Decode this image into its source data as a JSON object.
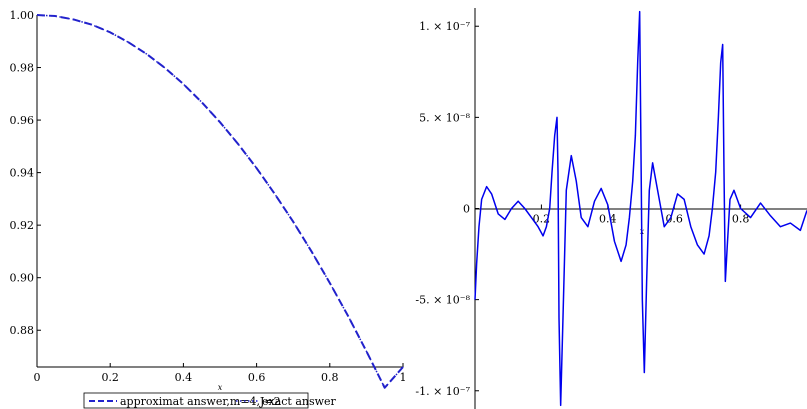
{
  "chart_data": [
    {
      "type": "line",
      "title": "",
      "xlabel": "x",
      "ylabel": "",
      "xlim": [
        0,
        1
      ],
      "ylim": [
        0.866,
        1.0
      ],
      "xticks": [
        "0",
        "0.2",
        "0.4",
        "0.6",
        "0.8",
        "1"
      ],
      "yticks": [
        "0.88",
        "0.90",
        "0.92",
        "0.94",
        "0.96",
        "0.98",
        "1.00"
      ],
      "grid": false,
      "legend_position": "bottom",
      "series": [
        {
          "name": "approximat answer,m=4,J=2",
          "style": "dashed",
          "color": "#2222cc",
          "x": [
            0,
            0.05,
            0.1,
            0.15,
            0.2,
            0.25,
            0.3,
            0.35,
            0.4,
            0.45,
            0.5,
            0.55,
            0.6,
            0.65,
            0.7,
            0.75,
            0.8,
            0.85,
            0.9,
            0.95,
            1.0
          ],
          "y": [
            1.0,
            0.9996,
            0.9983,
            0.9963,
            0.9934,
            0.9896,
            0.9851,
            0.9798,
            0.9737,
            0.9668,
            0.9592,
            0.9508,
            0.9417,
            0.9318,
            0.9213,
            0.91,
            0.898,
            0.8854,
            0.872,
            0.8581,
            0.866
          ]
        },
        {
          "name": "exact answer",
          "style": "dotted",
          "color": "#2222cc",
          "x": [
            0,
            0.05,
            0.1,
            0.15,
            0.2,
            0.25,
            0.3,
            0.35,
            0.4,
            0.45,
            0.5,
            0.55,
            0.6,
            0.65,
            0.7,
            0.75,
            0.8,
            0.85,
            0.9,
            0.95,
            1.0
          ],
          "y": [
            1.0,
            0.9996,
            0.9983,
            0.9963,
            0.9934,
            0.9896,
            0.9851,
            0.9798,
            0.9737,
            0.9668,
            0.9592,
            0.9508,
            0.9417,
            0.9318,
            0.9213,
            0.91,
            0.898,
            0.8854,
            0.872,
            0.8581,
            0.866
          ]
        }
      ]
    },
    {
      "type": "line",
      "title": "",
      "xlabel": "x",
      "ylabel": "",
      "xlim": [
        0,
        1
      ],
      "ylim": [
        -1.1e-07,
        1.1e-07
      ],
      "xticks": [
        "0.2",
        "0.4",
        "0.6",
        "0.8"
      ],
      "yticks": [
        "1. × 10⁻⁷",
        "5. × 10⁻⁸",
        "0",
        "-5. × 10⁻⁸",
        "-1. × 10⁻⁷"
      ],
      "grid": false,
      "series": [
        {
          "color": "#0000ee",
          "x": [
            0,
            0.005,
            0.012,
            0.02,
            0.035,
            0.05,
            0.07,
            0.09,
            0.11,
            0.13,
            0.15,
            0.17,
            0.19,
            0.205,
            0.215,
            0.225,
            0.232,
            0.24,
            0.247,
            0.25,
            0.253,
            0.258,
            0.265,
            0.275,
            0.29,
            0.305,
            0.32,
            0.34,
            0.36,
            0.38,
            0.4,
            0.42,
            0.44,
            0.455,
            0.465,
            0.475,
            0.483,
            0.49,
            0.496,
            0.5,
            0.504,
            0.51,
            0.517,
            0.525,
            0.535,
            0.55,
            0.57,
            0.59,
            0.61,
            0.63,
            0.65,
            0.67,
            0.69,
            0.705,
            0.715,
            0.725,
            0.733,
            0.74,
            0.746,
            0.75,
            0.754,
            0.76,
            0.768,
            0.78,
            0.8,
            0.83,
            0.86,
            0.89,
            0.92,
            0.95,
            0.98,
            1.0
          ],
          "y": [
            -5e-08,
            -3e-08,
            -1e-08,
            5e-09,
            1.2e-08,
            8e-09,
            -3e-09,
            -6e-09,
            0,
            4e-09,
            0,
            -5e-09,
            -1e-08,
            -1.5e-08,
            -1e-08,
            0,
            2e-08,
            4e-08,
            5e-08,
            2e-08,
            -6e-08,
            -1.08e-07,
            -6e-08,
            1e-08,
            2.9e-08,
            1.5e-08,
            -5e-09,
            -1e-08,
            4e-09,
            1.1e-08,
            2e-09,
            -1.8e-08,
            -2.9e-08,
            -2e-08,
            -5e-09,
            1.5e-08,
            4e-08,
            8e-08,
            1.08e-07,
            3e-08,
            -5e-08,
            -9e-08,
            -4e-08,
            1e-08,
            2.5e-08,
            1e-08,
            -1e-08,
            -5e-09,
            8e-09,
            5e-09,
            -1e-08,
            -2e-08,
            -2.5e-08,
            -1.5e-08,
            0,
            2e-08,
            5e-08,
            8e-08,
            9e-08,
            2e-08,
            -4e-08,
            -2e-08,
            5e-09,
            1e-08,
            0,
            -5e-09,
            3e-09,
            -4e-09,
            -1e-08,
            -8e-09,
            -1.2e-08,
            -1e-09
          ]
        }
      ]
    }
  ]
}
